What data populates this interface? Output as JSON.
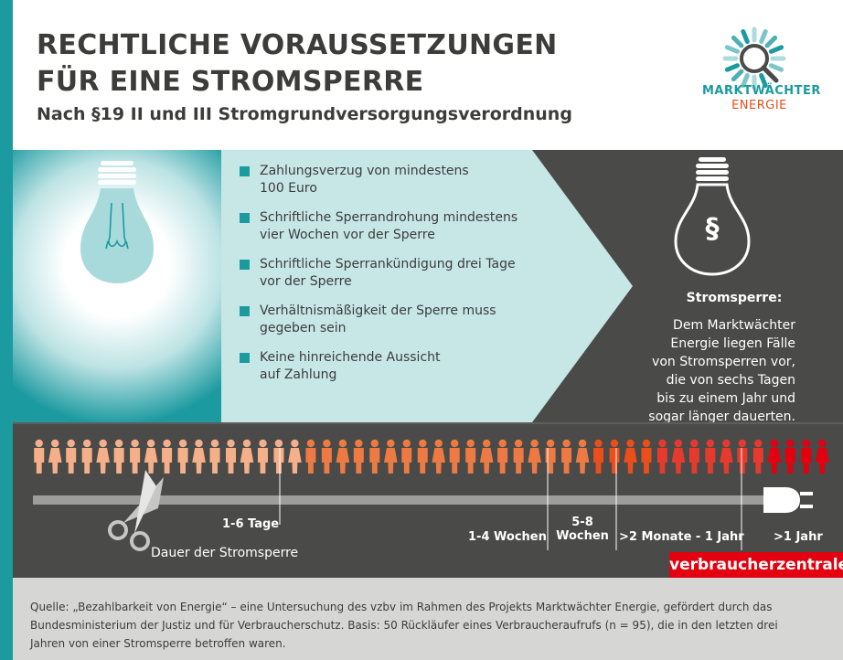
{
  "header": {
    "title_line1": "RECHTLICHE VORAUSSETZUNGEN",
    "title_line2": "FÜR EINE STROMSPERRE",
    "subtitle": "Nach §19 II und III Stromgrundversorgungsverordnung"
  },
  "logo": {
    "line1": "MARKTWÄCHTER",
    "line2": "ENERGIE",
    "icon": "magnifier-icon"
  },
  "criteria": [
    {
      "line1": "Zahlungsverzug von mindestens",
      "line2": "100 Euro"
    },
    {
      "line1": "Schriftliche Sperrandrohung mindestens",
      "line2": "vier Wochen vor der Sperre"
    },
    {
      "line1": "Schriftliche Sperrankündigung drei Tage",
      "line2": "vor der Sperre"
    },
    {
      "line1": "Verhältnismäßigkeit der Sperre muss",
      "line2": "gegeben sein"
    },
    {
      "line1": "Keine hinreichende Aussicht",
      "line2": "auf Zahlung"
    }
  ],
  "sperre": {
    "symbol": "§",
    "title": "Stromsperre:",
    "lines": [
      "Dem Marktwächter",
      "Energie liegen Fälle",
      "von Stromsperren vor,",
      "die von sechs Tagen",
      "bis zu einem Jahr und",
      "sogar länger dauerten."
    ]
  },
  "timeline": {
    "axis_label": "Dauer der Stromsperre",
    "categories": [
      {
        "label": "1-6 Tage",
        "count": 17,
        "color": "#f6b089"
      },
      {
        "label": "1-4 Wochen",
        "count": 18,
        "color": "#ee7a43"
      },
      {
        "label_line1": "5-8",
        "label_line2": "Wochen",
        "count": 4,
        "color": "#e94e1b"
      },
      {
        "label": ">2 Monate - 1 Jahr",
        "count": 7,
        "color": "#e63a2e"
      },
      {
        "label": ">1 Jahr",
        "count": 4,
        "color": "#e3000f"
      }
    ],
    "icons": [
      "scissors-icon",
      "plug-icon"
    ]
  },
  "brand": "verbraucherzentrale",
  "source": {
    "line1": "Quelle: „Bezahlbarkeit von Energie“ – eine Untersuchung des vzbv im Rahmen des Projekts Marktwächter Energie, gefördert durch das",
    "line2": "Bundesministerium der Justiz und für Verbraucherschutz. Basis: 50 Rückläufer eines Verbraucheraufrufs (n = 95), die in den letzten drei",
    "line3": "Jahren von einer Stromsperre betroffen waren."
  }
}
